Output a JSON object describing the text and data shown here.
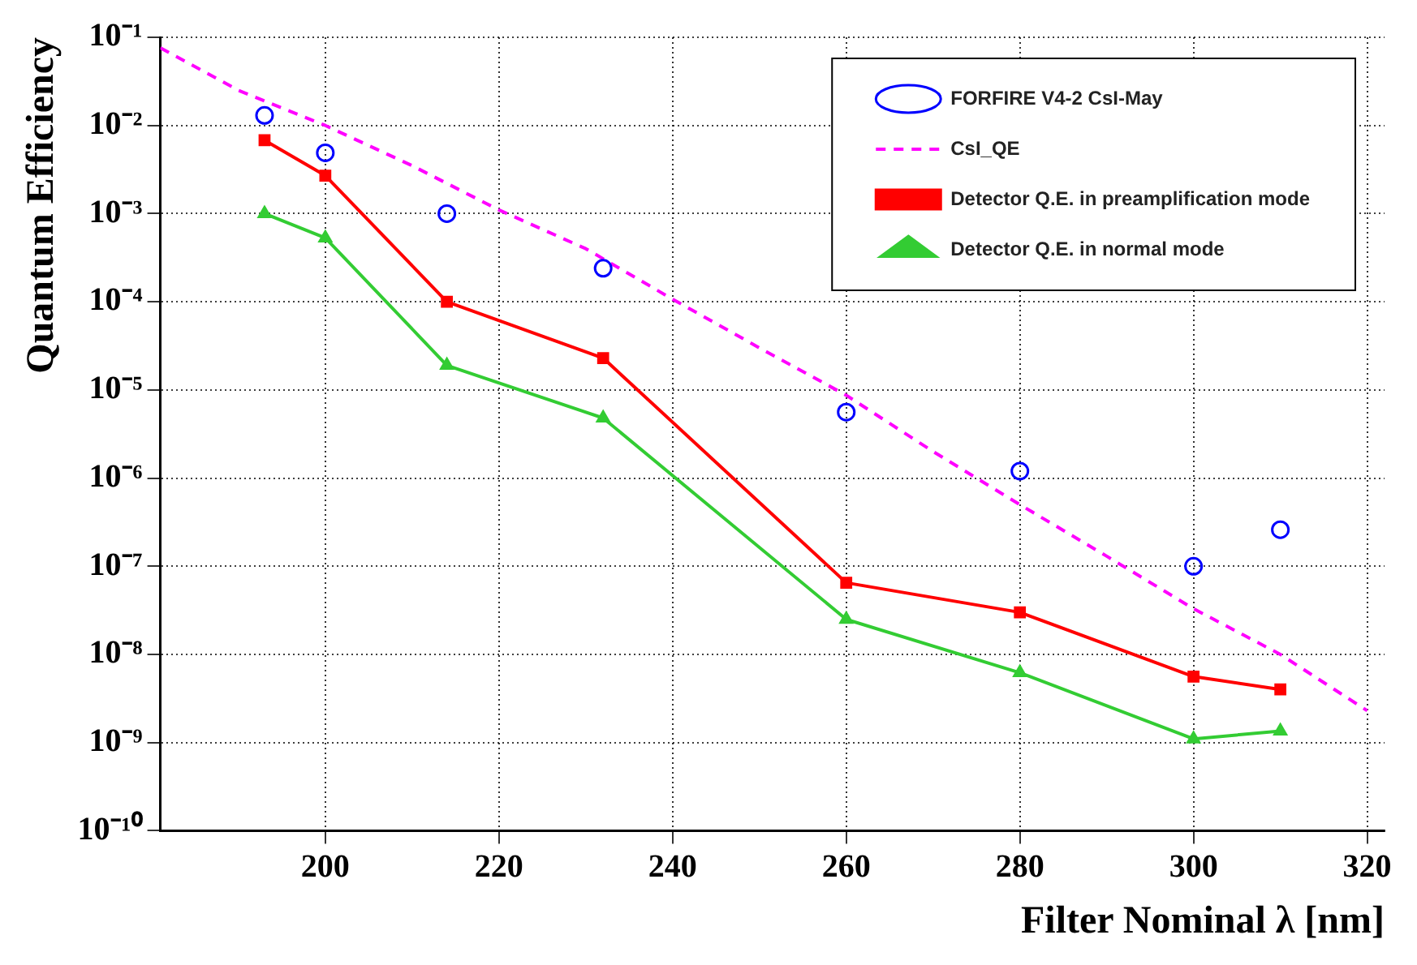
{
  "chart_data": {
    "type": "line",
    "xlabel": "Filter Nominal λ [nm]",
    "ylabel": "Quantum Efficiency",
    "log": "y",
    "grid": true,
    "legend": "top right",
    "xlim": [
      181,
      322
    ],
    "xticks": [
      200,
      220,
      240,
      260,
      280,
      300,
      320
    ],
    "ylim": [
      1e-10,
      0.1
    ],
    "yticks": [
      {
        "value": 1e-10,
        "label": "10⁻¹⁰"
      },
      {
        "value": 1e-09,
        "label": "10⁻⁹"
      },
      {
        "value": 1e-08,
        "label": "10⁻⁸"
      },
      {
        "value": 1e-07,
        "label": "10⁻⁷"
      },
      {
        "value": 1e-06,
        "label": "10⁻⁶"
      },
      {
        "value": 1e-05,
        "label": "10⁻⁵"
      },
      {
        "value": 0.0001,
        "label": "10⁻⁴"
      },
      {
        "value": 0.001,
        "label": "10⁻³"
      },
      {
        "value": 0.01,
        "label": "10⁻²"
      },
      {
        "value": 0.1,
        "label": "10⁻¹"
      }
    ],
    "series": [
      {
        "name": "FORFIRE V4-2 CsI-May",
        "type": "scatter",
        "marker": "circle",
        "color": "#0000ff",
        "x": [
          193,
          200,
          214,
          232,
          260,
          280,
          300,
          310
        ],
        "values": [
          0.013,
          0.0049,
          0.001,
          0.00024,
          5.6e-06,
          1.2e-06,
          1e-07,
          2.6e-07
        ]
      },
      {
        "name": "CsI_QE",
        "type": "line",
        "marker": "none",
        "line_style": "dashed",
        "color": "#ff00ff",
        "x": [
          181,
          190,
          200,
          210,
          220,
          230,
          240,
          250,
          260,
          270,
          280,
          290,
          300,
          310,
          320
        ],
        "values": [
          0.076,
          0.025,
          0.01,
          0.0035,
          0.0011,
          0.0004,
          0.000107,
          3e-05,
          8.7e-06,
          2e-06,
          5e-07,
          1.3e-07,
          3.3e-08,
          1e-08,
          2.3e-09
        ]
      },
      {
        "name": "Detector Q.E. in preamplification mode",
        "type": "line",
        "marker": "square",
        "line_style": "solid",
        "color": "#ff0000",
        "x": [
          193,
          200,
          214,
          232,
          260,
          280,
          300,
          310
        ],
        "values": [
          0.0068,
          0.0027,
          0.0001,
          2.3e-05,
          6.5e-08,
          3e-08,
          5.6e-09,
          4e-09
        ]
      },
      {
        "name": "Detector Q.E. in normal mode",
        "type": "line",
        "marker": "triangle",
        "line_style": "solid",
        "color": "#33cc33",
        "x": [
          193,
          200,
          214,
          232,
          260,
          280,
          300,
          310
        ],
        "values": [
          0.001,
          0.00053,
          1.9e-05,
          4.8e-06,
          2.5e-08,
          6.2e-09,
          1.1e-09,
          1.35e-09
        ]
      }
    ]
  }
}
